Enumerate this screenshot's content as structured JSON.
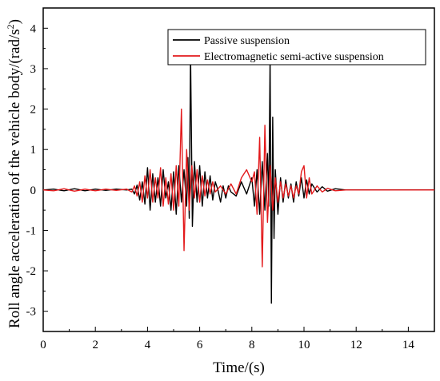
{
  "chart_data": {
    "type": "line",
    "title": "",
    "xlabel": "Time/(s)",
    "ylabel": "Roll angle acceleration of the vehicle body/(rad/s²)",
    "ylabel_main": "Roll angle acceleration of the vehicle body/(rad/s",
    "ylabel_sup": "2",
    "ylabel_tail": ")",
    "xlim": [
      0,
      15
    ],
    "ylim": [
      -3.5,
      4.5
    ],
    "xticks": [
      0,
      2,
      4,
      6,
      8,
      10,
      12,
      14
    ],
    "yticks": [
      -3,
      -2,
      -1,
      0,
      1,
      2,
      3,
      4
    ],
    "grid": false,
    "legend_position": "top-right",
    "series": [
      {
        "name": "Passive suspension",
        "color": "#000000",
        "points": [
          [
            0,
            0
          ],
          [
            0.4,
            0.02
          ],
          [
            0.8,
            -0.02
          ],
          [
            1.2,
            0.03
          ],
          [
            1.6,
            -0.02
          ],
          [
            2.0,
            0.02
          ],
          [
            2.4,
            -0.01
          ],
          [
            2.8,
            0.02
          ],
          [
            3.2,
            0
          ],
          [
            3.4,
            0.02
          ],
          [
            3.5,
            -0.1
          ],
          [
            3.6,
            0.12
          ],
          [
            3.7,
            -0.25
          ],
          [
            3.8,
            0.2
          ],
          [
            3.9,
            -0.35
          ],
          [
            4.0,
            0.55
          ],
          [
            4.1,
            -0.5
          ],
          [
            4.2,
            0.4
          ],
          [
            4.3,
            -0.3
          ],
          [
            4.4,
            0.3
          ],
          [
            4.5,
            -0.4
          ],
          [
            4.6,
            0.5
          ],
          [
            4.7,
            -0.2
          ],
          [
            4.8,
            0.2
          ],
          [
            4.9,
            -0.5
          ],
          [
            5.0,
            0.45
          ],
          [
            5.1,
            -0.6
          ],
          [
            5.2,
            0.6
          ],
          [
            5.3,
            -0.3
          ],
          [
            5.4,
            0.5
          ],
          [
            5.5,
            -0.4
          ],
          [
            5.55,
            0.8
          ],
          [
            5.6,
            -0.7
          ],
          [
            5.65,
            3.4
          ],
          [
            5.72,
            -0.9
          ],
          [
            5.8,
            0.7
          ],
          [
            5.9,
            -0.3
          ],
          [
            6.0,
            0.6
          ],
          [
            6.1,
            -0.4
          ],
          [
            6.2,
            0.45
          ],
          [
            6.3,
            -0.2
          ],
          [
            6.4,
            0.35
          ],
          [
            6.5,
            -0.25
          ],
          [
            6.6,
            0.2
          ],
          [
            6.7,
            0
          ],
          [
            6.8,
            -0.3
          ],
          [
            6.9,
            0.1
          ],
          [
            7.0,
            -0.2
          ],
          [
            7.1,
            0.1
          ],
          [
            7.2,
            -0.05
          ],
          [
            7.4,
            -0.15
          ],
          [
            7.6,
            0.2
          ],
          [
            7.8,
            -0.1
          ],
          [
            8.0,
            0.3
          ],
          [
            8.1,
            -0.4
          ],
          [
            8.2,
            0.5
          ],
          [
            8.3,
            -0.6
          ],
          [
            8.4,
            0.7
          ],
          [
            8.5,
            -0.5
          ],
          [
            8.6,
            0.9
          ],
          [
            8.65,
            -0.4
          ],
          [
            8.7,
            3.3
          ],
          [
            8.75,
            -2.8
          ],
          [
            8.8,
            1.8
          ],
          [
            8.85,
            -1.2
          ],
          [
            8.9,
            0.5
          ],
          [
            9.0,
            -0.6
          ],
          [
            9.1,
            0.3
          ],
          [
            9.2,
            -0.3
          ],
          [
            9.3,
            0.25
          ],
          [
            9.4,
            -0.2
          ],
          [
            9.5,
            0.15
          ],
          [
            9.6,
            -0.3
          ],
          [
            9.7,
            0.2
          ],
          [
            9.8,
            -0.15
          ],
          [
            9.9,
            0.3
          ],
          [
            10.0,
            -0.2
          ],
          [
            10.1,
            0.25
          ],
          [
            10.2,
            -0.1
          ],
          [
            10.3,
            0.15
          ],
          [
            10.5,
            -0.05
          ],
          [
            10.7,
            0.08
          ],
          [
            10.9,
            -0.03
          ],
          [
            11.2,
            0.03
          ],
          [
            11.6,
            0
          ],
          [
            12.0,
            0
          ],
          [
            13.0,
            0
          ],
          [
            14.0,
            0
          ],
          [
            15.0,
            0
          ]
        ]
      },
      {
        "name": "Electromagnetic semi-active suspension",
        "color": "#e31a1c",
        "points": [
          [
            0,
            0
          ],
          [
            0.4,
            -0.02
          ],
          [
            0.8,
            0.03
          ],
          [
            1.2,
            -0.03
          ],
          [
            1.6,
            0.02
          ],
          [
            2.0,
            -0.02
          ],
          [
            2.4,
            0.02
          ],
          [
            2.8,
            -0.01
          ],
          [
            3.2,
            0.02
          ],
          [
            3.4,
            -0.05
          ],
          [
            3.5,
            0.1
          ],
          [
            3.6,
            -0.15
          ],
          [
            3.7,
            0.2
          ],
          [
            3.8,
            -0.3
          ],
          [
            3.9,
            0.35
          ],
          [
            4.0,
            -0.2
          ],
          [
            4.1,
            0.5
          ],
          [
            4.2,
            -0.3
          ],
          [
            4.3,
            0.3
          ],
          [
            4.4,
            -0.2
          ],
          [
            4.5,
            0.55
          ],
          [
            4.6,
            -0.4
          ],
          [
            4.7,
            0.3
          ],
          [
            4.8,
            -0.35
          ],
          [
            4.9,
            0.4
          ],
          [
            5.0,
            -0.5
          ],
          [
            5.1,
            0.6
          ],
          [
            5.2,
            -0.4
          ],
          [
            5.3,
            2.0
          ],
          [
            5.4,
            -1.5
          ],
          [
            5.5,
            1.0
          ],
          [
            5.6,
            -0.5
          ],
          [
            5.7,
            0.6
          ],
          [
            5.8,
            -0.2
          ],
          [
            5.9,
            0.5
          ],
          [
            6.0,
            -0.3
          ],
          [
            6.1,
            0.35
          ],
          [
            6.2,
            -0.15
          ],
          [
            6.3,
            0.25
          ],
          [
            6.4,
            -0.1
          ],
          [
            6.5,
            0.2
          ],
          [
            6.6,
            -0.05
          ],
          [
            6.8,
            0.1
          ],
          [
            7.0,
            -0.1
          ],
          [
            7.2,
            0.15
          ],
          [
            7.4,
            -0.1
          ],
          [
            7.6,
            0.3
          ],
          [
            7.8,
            0.5
          ],
          [
            8.0,
            0.2
          ],
          [
            8.1,
            0.45
          ],
          [
            8.2,
            -0.6
          ],
          [
            8.3,
            1.3
          ],
          [
            8.4,
            -1.9
          ],
          [
            8.5,
            1.6
          ],
          [
            8.6,
            -0.8
          ],
          [
            8.7,
            0.6
          ],
          [
            8.8,
            -0.5
          ],
          [
            8.9,
            0.3
          ],
          [
            9.0,
            -0.3
          ],
          [
            9.1,
            0.2
          ],
          [
            9.2,
            -0.2
          ],
          [
            9.3,
            0.15
          ],
          [
            9.4,
            -0.15
          ],
          [
            9.5,
            0.1
          ],
          [
            9.6,
            -0.2
          ],
          [
            9.7,
            0.1
          ],
          [
            9.8,
            -0.1
          ],
          [
            9.9,
            0.45
          ],
          [
            10.0,
            0.6
          ],
          [
            10.1,
            -0.2
          ],
          [
            10.2,
            0.3
          ],
          [
            10.3,
            -0.1
          ],
          [
            10.5,
            0.1
          ],
          [
            10.7,
            -0.05
          ],
          [
            10.9,
            0.04
          ],
          [
            11.2,
            -0.02
          ],
          [
            11.6,
            0
          ],
          [
            12.0,
            0
          ],
          [
            13.0,
            0
          ],
          [
            14.0,
            0
          ],
          [
            15.0,
            0
          ]
        ]
      }
    ]
  }
}
